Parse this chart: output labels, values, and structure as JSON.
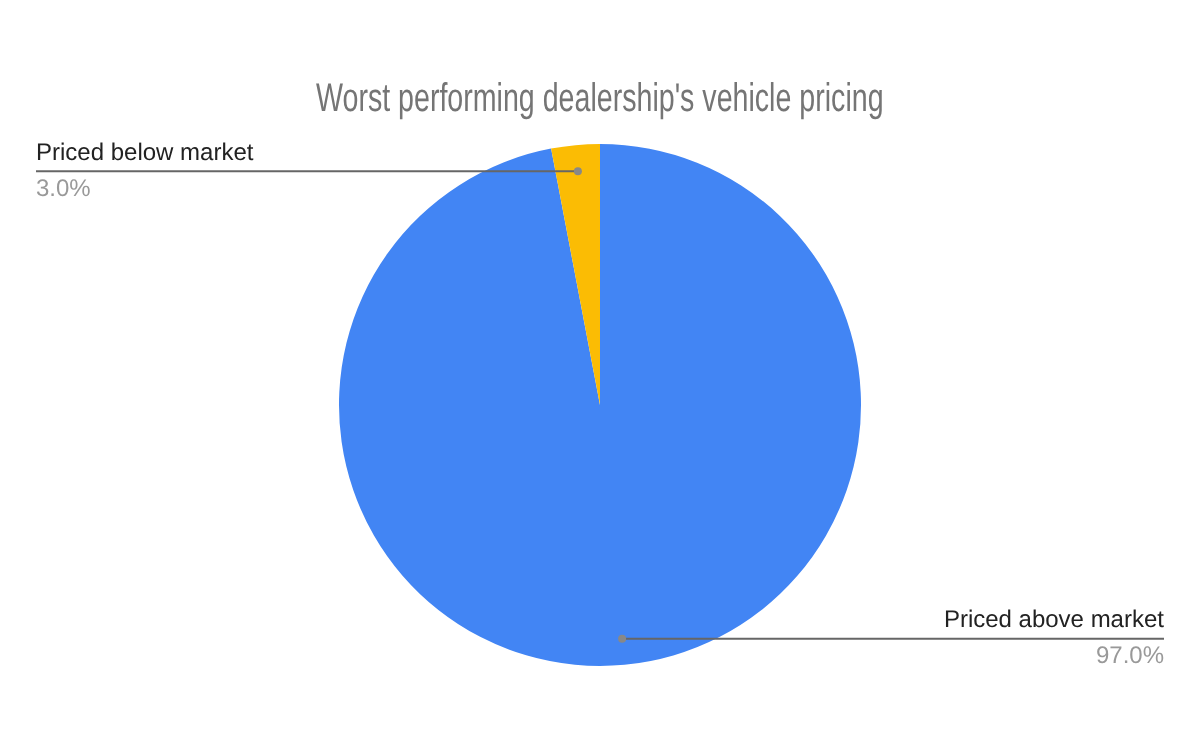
{
  "chart_data": {
    "type": "pie",
    "title": "Worst performing dealership's vehicle pricing",
    "categories": [
      "Priced above market",
      "Priced below market"
    ],
    "values": [
      97.0,
      3.0
    ],
    "value_labels": [
      "97.0%",
      "3.0%"
    ],
    "colors": [
      "#4285f4",
      "#fbbc04"
    ],
    "legend": false
  }
}
